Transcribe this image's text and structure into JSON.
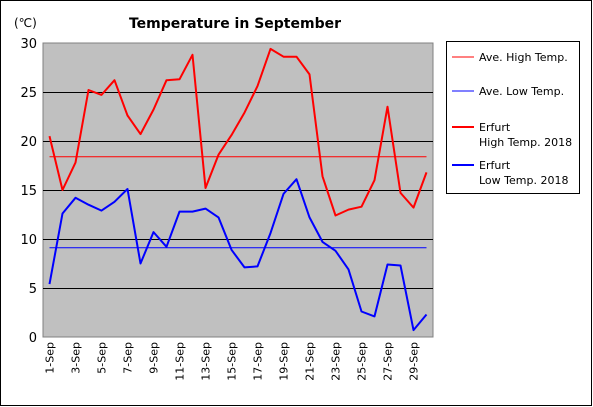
{
  "chart_data": {
    "type": "line",
    "title": "Temperature in September",
    "ylabel_unit": "(℃)",
    "ylim": [
      0,
      30
    ],
    "yticks": [
      "0",
      "5",
      "10",
      "15",
      "20",
      "25",
      "30"
    ],
    "xlabels": [
      "1-Sep",
      "3-Sep",
      "5-Sep",
      "7-Sep",
      "9-Sep",
      "11-Sep",
      "13-Sep",
      "15-Sep",
      "17-Sep",
      "19-Sep",
      "21-Sep",
      "23-Sep",
      "25-Sep",
      "27-Sep",
      "29-Sep"
    ],
    "categories": [
      "1-Sep",
      "2-Sep",
      "3-Sep",
      "4-Sep",
      "5-Sep",
      "6-Sep",
      "7-Sep",
      "8-Sep",
      "9-Sep",
      "10-Sep",
      "11-Sep",
      "12-Sep",
      "13-Sep",
      "14-Sep",
      "15-Sep",
      "16-Sep",
      "17-Sep",
      "18-Sep",
      "19-Sep",
      "20-Sep",
      "21-Sep",
      "22-Sep",
      "23-Sep",
      "24-Sep",
      "25-Sep",
      "26-Sep",
      "27-Sep",
      "28-Sep",
      "29-Sep",
      "30-Sep"
    ],
    "grid": true,
    "legend_position": "right",
    "series": [
      {
        "name": "Ave. High Temp.",
        "color": "#ff0000",
        "style": "thin",
        "constant": 18.4
      },
      {
        "name": "Ave. Low Temp.",
        "color": "#0000ff",
        "style": "thin",
        "constant": 9.1
      },
      {
        "name": "Erfurt High Temp. 2018",
        "legend_lines": [
          "Erfurt",
          "High Temp. 2018"
        ],
        "color": "#ff0000",
        "style": "thick",
        "values": [
          20.5,
          15.0,
          17.8,
          25.2,
          24.7,
          26.2,
          22.6,
          20.7,
          23.2,
          26.2,
          26.3,
          28.8,
          15.2,
          18.6,
          20.6,
          22.9,
          25.6,
          29.4,
          28.6,
          28.6,
          26.8,
          16.4,
          12.4,
          13.0,
          13.3,
          16.0,
          23.5,
          14.7,
          13.2,
          16.8
        ]
      },
      {
        "name": "Erfurt Low Temp. 2018",
        "legend_lines": [
          "Erfurt",
          "Low Temp. 2018"
        ],
        "color": "#0000ff",
        "style": "thick",
        "values": [
          5.4,
          12.6,
          14.2,
          13.5,
          12.9,
          13.8,
          15.1,
          7.5,
          10.7,
          9.2,
          12.8,
          12.8,
          13.1,
          12.2,
          8.9,
          7.1,
          7.2,
          10.6,
          14.6,
          16.1,
          12.2,
          9.7,
          8.8,
          6.9,
          2.6,
          2.1,
          7.4,
          7.3,
          0.7,
          2.3
        ]
      }
    ]
  }
}
